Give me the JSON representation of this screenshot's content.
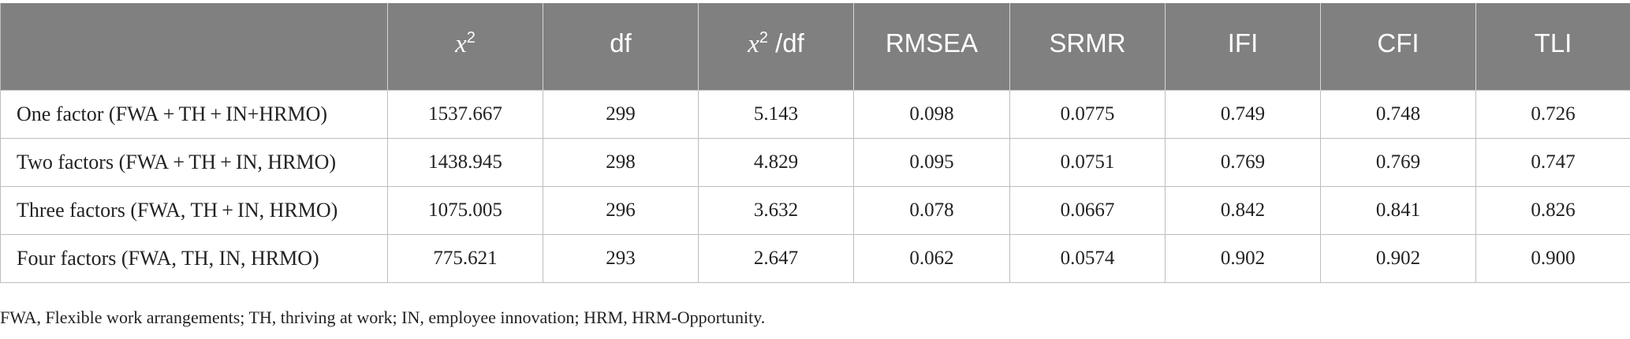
{
  "table": {
    "headers": [
      {
        "key": "model",
        "label": ""
      },
      {
        "key": "chi2",
        "base": "x",
        "sup": "2",
        "rest": ""
      },
      {
        "key": "df",
        "label": "df"
      },
      {
        "key": "chi2_df",
        "base": "x",
        "sup": "2",
        "rest": " /df"
      },
      {
        "key": "rmsea",
        "label": "RMSEA"
      },
      {
        "key": "srmr",
        "label": "SRMR"
      },
      {
        "key": "ifi",
        "label": "IFI"
      },
      {
        "key": "cfi",
        "label": "CFI"
      },
      {
        "key": "tli",
        "label": "TLI"
      }
    ],
    "rows": [
      [
        "One factor (FWA + TH + IN+HRMO)",
        "1537.667",
        "299",
        "5.143",
        "0.098",
        "0.0775",
        "0.749",
        "0.748",
        "0.726"
      ],
      [
        "Two factors (FWA + TH + IN, HRMO)",
        "1438.945",
        "298",
        "4.829",
        "0.095",
        "0.0751",
        "0.769",
        "0.769",
        "0.747"
      ],
      [
        "Three factors (FWA, TH + IN, HRMO)",
        "1075.005",
        "296",
        "3.632",
        "0.078",
        "0.0667",
        "0.842",
        "0.841",
        "0.826"
      ],
      [
        "Four factors (FWA, TH, IN, HRMO)",
        "775.621",
        "293",
        "2.647",
        "0.062",
        "0.0574",
        "0.902",
        "0.902",
        "0.900"
      ]
    ]
  },
  "footnote": "FWA, Flexible work arrangements; TH, thriving at work; IN, employee innovation; HRM, HRM-Opportunity."
}
